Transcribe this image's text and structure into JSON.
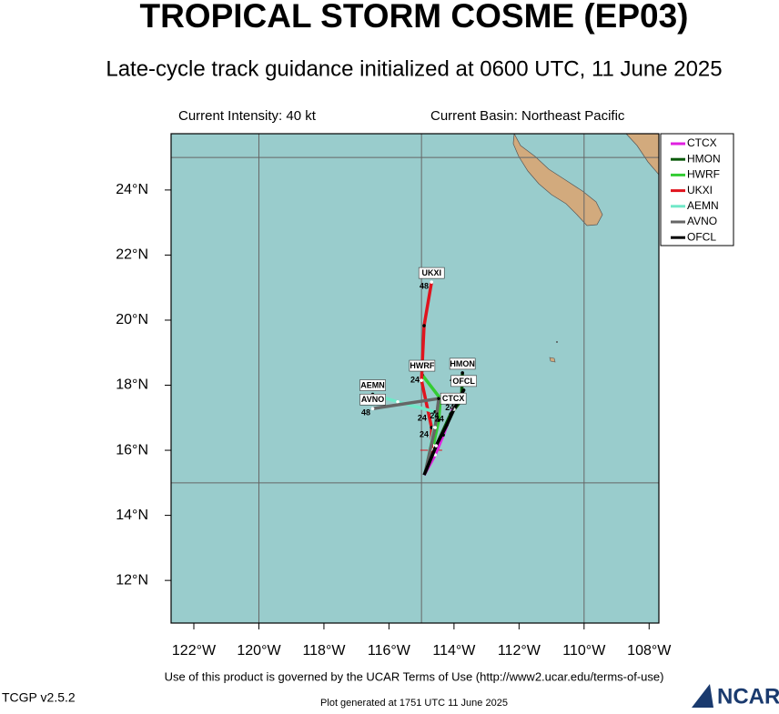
{
  "header": {
    "title": "TROPICAL STORM COSME (EP03)",
    "subtitle": "Late-cycle track guidance initialized at 0600 UTC, 11 June 2025",
    "intensity": "Current Intensity: 40 kt",
    "basin": "Current Basin: Northeast Pacific"
  },
  "map": {
    "xlim": [
      122.7,
      107.7
    ],
    "ylim": [
      10.69,
      25.73
    ],
    "xticks": [
      {
        "value": 122,
        "label": "122°W"
      },
      {
        "value": 120,
        "label": "120°W"
      },
      {
        "value": 118,
        "label": "118°W"
      },
      {
        "value": 116,
        "label": "116°W"
      },
      {
        "value": 114,
        "label": "114°W"
      },
      {
        "value": 112,
        "label": "112°W"
      },
      {
        "value": 110,
        "label": "110°W"
      },
      {
        "value": 108,
        "label": "108°W"
      }
    ],
    "yticks": [
      {
        "value": 12,
        "label": "12°N"
      },
      {
        "value": 14,
        "label": "14°N"
      },
      {
        "value": 16,
        "label": "16°N"
      },
      {
        "value": 18,
        "label": "18°N"
      },
      {
        "value": 20,
        "label": "20°N"
      },
      {
        "value": 22,
        "label": "22°N"
      },
      {
        "value": 24,
        "label": "24°N"
      }
    ],
    "xgrid": [
      120,
      115,
      110
    ],
    "ygrid": [
      15,
      25
    ],
    "current_position": {
      "lon": 114.7,
      "lat": 16.0
    },
    "tracks": [
      {
        "name": "CTCX",
        "color": "#e020e0",
        "lon": [
          114.92,
          114.58,
          114.33,
          114.02
        ],
        "lat": [
          15.24,
          15.86,
          16.47,
          17.31
        ],
        "hours": [
          {
            "hour": 24,
            "lon": 114.13,
            "lat": 17.3
          }
        ]
      },
      {
        "name": "HMON",
        "color": "#0b5a0b",
        "lon": [
          114.89,
          114.52,
          114.1,
          113.77,
          113.74
        ],
        "lat": [
          15.3,
          16.2,
          17.12,
          17.54,
          18.38
        ],
        "hours": [
          {
            "hour": 24,
            "lon": 114.45,
            "lat": 16.95
          }
        ]
      },
      {
        "name": "HWRF",
        "color": "#33cc33",
        "lon": [
          114.89,
          114.64,
          114.47,
          114.42,
          114.98
        ],
        "lat": [
          15.3,
          16.14,
          16.92,
          17.59,
          18.32
        ],
        "hours": [
          {
            "hour": 24,
            "lon": 115.2,
            "lat": 18.15
          },
          {
            "hour": 24,
            "lon": 114.6,
            "lat": 17.05
          }
        ]
      },
      {
        "name": "UKXI",
        "color": "#e0141e",
        "lon": [
          114.89,
          114.69,
          114.69,
          115.0,
          114.92,
          114.69
        ],
        "lat": [
          15.3,
          16.03,
          16.7,
          18.15,
          19.83,
          21.17
        ],
        "hours": [
          {
            "hour": 48,
            "lon": 114.92,
            "lat": 21.03
          },
          {
            "hour": 24,
            "lon": 114.92,
            "lat": 16.48
          }
        ]
      },
      {
        "name": "AEMN",
        "color": "#70e8c8",
        "lon": [
          114.89,
          114.61,
          114.58,
          115.73,
          116.5
        ],
        "lat": [
          15.3,
          16.7,
          17.18,
          17.49,
          17.72
        ],
        "hours": [
          {
            "hour": 24,
            "lon": 114.98,
            "lat": 16.98
          }
        ]
      },
      {
        "name": "AVNO",
        "color": "#666666",
        "lon": [
          114.89,
          114.58,
          114.47,
          116.5
        ],
        "lat": [
          15.3,
          16.7,
          17.59,
          17.28
        ],
        "hours": [
          {
            "hour": 48,
            "lon": 116.71,
            "lat": 17.15
          }
        ]
      },
      {
        "name": "OFCL",
        "color": "#000000",
        "lon": [
          114.92,
          114.55,
          114.22,
          114.0,
          113.7
        ],
        "lat": [
          15.24,
          16.14,
          16.78,
          17.26,
          17.85
        ],
        "hours": [
          {
            "hour": 48,
            "lon": 113.99,
            "lat": 18.15
          }
        ]
      }
    ]
  },
  "footer": {
    "terms": "Use of this product is governed by the UCAR Terms of Use (http://www2.ucar.edu/terms-of-use)",
    "version": "TCGP v2.5.2",
    "generated": "Plot generated at 1751 UTC  11 June 2025",
    "logo": "NCAR"
  }
}
